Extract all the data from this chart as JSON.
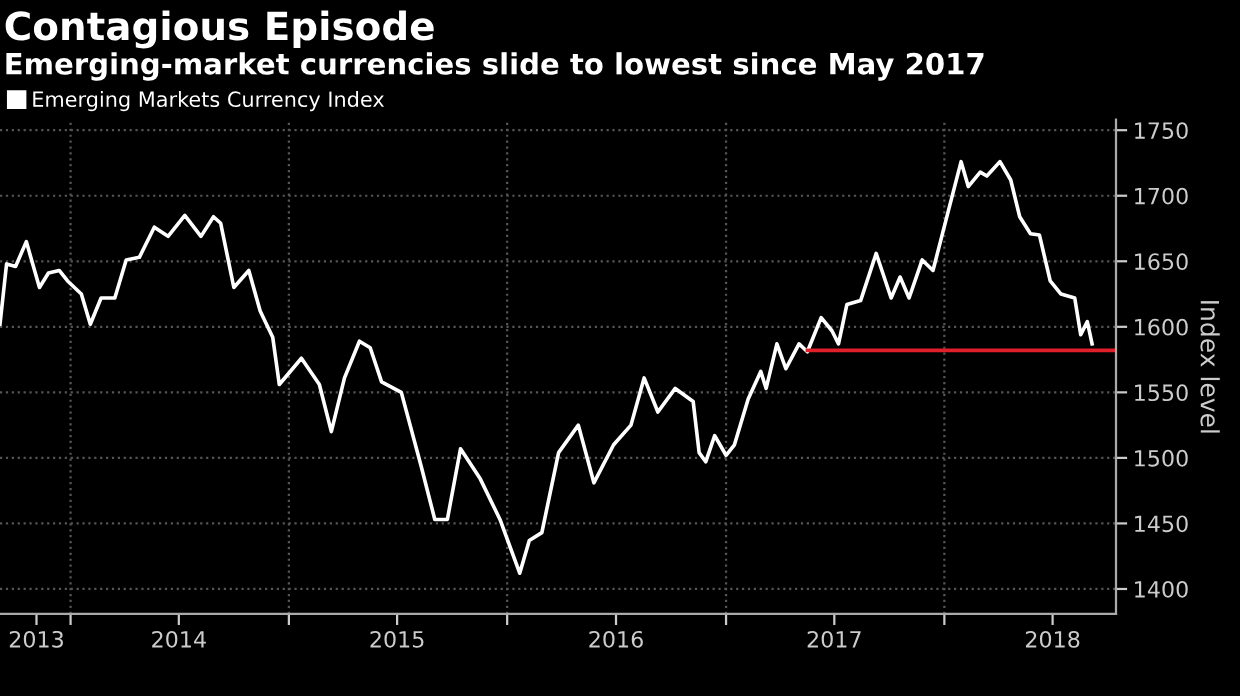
{
  "chart_data": {
    "type": "line",
    "title": "Contagious Episode",
    "subtitle": "Emerging-market currencies slide to lowest since May 2017",
    "ylabel": "Index level",
    "series": [
      {
        "name": "Emerging Markets Currency Index",
        "color": "#ffffff",
        "x": [
          "2013-09-05",
          "2013-09-16",
          "2013-10-01",
          "2013-10-19",
          "2013-11-10",
          "2013-11-25",
          "2013-12-13",
          "2013-12-27",
          "2014-01-19",
          "2014-02-03",
          "2014-02-21",
          "2014-03-16",
          "2014-04-04",
          "2014-04-26",
          "2014-05-21",
          "2014-06-13",
          "2014-07-11",
          "2014-08-07",
          "2014-08-28",
          "2014-09-09",
          "2014-10-01",
          "2014-10-26",
          "2014-11-14",
          "2014-12-05",
          "2014-12-16",
          "2015-01-22",
          "2015-02-21",
          "2015-03-13",
          "2015-04-04",
          "2015-04-29",
          "2015-05-17",
          "2015-06-05",
          "2015-07-08",
          "2015-08-10",
          "2015-09-02",
          "2015-09-23",
          "2015-10-15",
          "2015-11-17",
          "2015-12-20",
          "2016-01-22",
          "2016-02-07",
          "2016-02-28",
          "2016-03-27",
          "2016-04-29",
          "2016-05-25",
          "2016-06-27",
          "2016-07-26",
          "2016-08-17",
          "2016-09-09",
          "2016-10-08",
          "2016-11-07",
          "2016-11-17",
          "2016-11-28",
          "2016-12-13",
          "2017-01-01",
          "2017-01-15",
          "2017-02-07",
          "2017-02-28",
          "2017-03-09",
          "2017-03-27",
          "2017-04-11",
          "2017-05-03",
          "2017-05-17",
          "2017-06-09",
          "2017-06-27",
          "2017-07-08",
          "2017-07-22",
          "2017-08-14",
          "2017-09-09",
          "2017-10-04",
          "2017-10-19",
          "2017-11-03",
          "2017-11-25",
          "2017-12-13",
          "2018-01-08",
          "2018-01-29",
          "2018-02-10",
          "2018-03-02",
          "2018-03-13",
          "2018-04-04",
          "2018-04-22",
          "2018-05-07",
          "2018-05-25",
          "2018-06-09",
          "2018-06-27",
          "2018-07-15",
          "2018-08-07",
          "2018-08-17",
          "2018-08-28",
          "2018-09-05"
        ],
        "values": [
          1602,
          1648,
          1646,
          1665,
          1630,
          1641,
          1643,
          1635,
          1625,
          1602,
          1622,
          1622,
          1651,
          1653,
          1676,
          1669,
          1685,
          1669,
          1684,
          1679,
          1630,
          1643,
          1612,
          1592,
          1556,
          1576,
          1556,
          1520,
          1561,
          1589,
          1584,
          1558,
          1550,
          1494,
          1453,
          1453,
          1507,
          1484,
          1453,
          1412,
          1437,
          1443,
          1504,
          1525,
          1481,
          1510,
          1525,
          1561,
          1535,
          1553,
          1543,
          1504,
          1497,
          1517,
          1502,
          1510,
          1545,
          1566,
          1553,
          1587,
          1568,
          1587,
          1581,
          1607,
          1597,
          1587,
          1617,
          1620,
          1656,
          1622,
          1638,
          1622,
          1651,
          1643,
          1689,
          1726,
          1707,
          1718,
          1715,
          1726,
          1712,
          1684,
          1671,
          1670,
          1635,
          1625,
          1622,
          1594,
          1604,
          1587
        ]
      },
      {
        "color": "#e0202a",
        "x": [
          "2017-05-17",
          "2018-10-15"
        ],
        "values": [
          1582,
          1582
        ]
      }
    ],
    "xlim": [
      "2013-09-05",
      "2018-10-15"
    ],
    "xticks": [
      {
        "value": "2013-11-05",
        "label": "2013"
      },
      {
        "value": "2014-01-01",
        "label": null
      },
      {
        "value": "2014-07-01",
        "label": "2014"
      },
      {
        "value": "2015-01-01",
        "label": null
      },
      {
        "value": "2015-07-01",
        "label": "2015"
      },
      {
        "value": "2016-01-01",
        "label": null
      },
      {
        "value": "2016-07-01",
        "label": "2016"
      },
      {
        "value": "2017-01-01",
        "label": null
      },
      {
        "value": "2017-07-01",
        "label": "2017"
      },
      {
        "value": "2018-01-01",
        "label": null
      },
      {
        "value": "2018-07-01",
        "label": "2018"
      }
    ],
    "ylim": [
      1381,
      1758
    ],
    "yticks": [
      1400,
      1450,
      1500,
      1550,
      1600,
      1650,
      1700,
      1750
    ],
    "grid": true,
    "legend": "top left",
    "marker": "none",
    "line_style": "solid"
  }
}
